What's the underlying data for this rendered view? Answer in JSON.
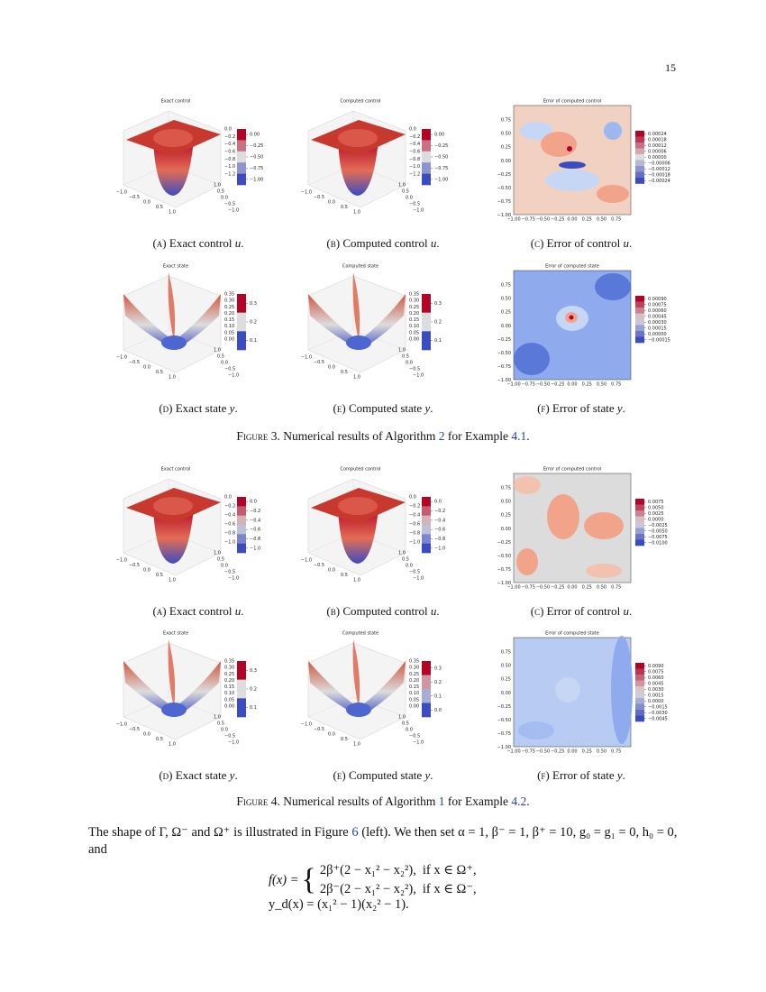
{
  "page_number": "15",
  "axes": {
    "surface_x": [
      "−1.0",
      "−0.5",
      "0.0",
      "0.5",
      "1.0"
    ],
    "surface_y": [
      "1.0",
      "0.5",
      "0.0",
      "−0.5",
      "−1.0"
    ],
    "contour_x": [
      "−1.00",
      "−0.75",
      "−0.50",
      "−0.25",
      "0.00",
      "0.25",
      "0.50",
      "0.75"
    ],
    "contour_y": [
      "0.75",
      "0.50",
      "0.25",
      "0.00",
      "−0.25",
      "−0.50",
      "−0.75",
      "−1.00"
    ]
  },
  "figures": [
    {
      "rows": [
        [
          {
            "title": "Exact control",
            "zticks": [
              "0.0",
              "−0.2",
              "−0.4",
              "−0.6",
              "−0.8",
              "−1.0",
              "−1.2"
            ],
            "cbar": [
              "0.00",
              "−0.25",
              "−0.50",
              "−0.75",
              "−1.00"
            ],
            "caption": {
              "label": "(a)",
              "text": "Exact control",
              "var": "u",
              "end": "."
            }
          },
          {
            "title": "Computed control",
            "zticks": [
              "0.0",
              "−0.2",
              "−0.4",
              "−0.6",
              "−0.8",
              "−1.0",
              "−1.2"
            ],
            "cbar": [
              "0.00",
              "−0.25",
              "−0.50",
              "−0.75",
              "−1.00"
            ],
            "caption": {
              "label": "(b)",
              "text": "Computed control",
              "var": "u",
              "end": "."
            }
          },
          {
            "title": "Error of computed control",
            "cbar": [
              "0.00024",
              "0.00018",
              "0.00012",
              "0.00006",
              "0.00000",
              "−0.00006",
              "−0.00012",
              "−0.00018",
              "−0.00024"
            ],
            "caption": {
              "label": "(c)",
              "text": "Error of control",
              "var": "u",
              "end": "."
            }
          }
        ],
        [
          {
            "title": "Exact state",
            "zticks": [
              "0.35",
              "0.30",
              "0.25",
              "0.20",
              "0.15",
              "0.10",
              "0.05",
              "0.00"
            ],
            "cbar": [
              "0.3",
              "0.2",
              "0.1"
            ],
            "caption": {
              "label": "(d)",
              "text": "Exact state",
              "var": "y",
              "end": "."
            }
          },
          {
            "title": "Computed state",
            "zticks": [
              "0.35",
              "0.30",
              "0.25",
              "0.20",
              "0.15",
              "0.10",
              "0.05",
              "0.00"
            ],
            "cbar": [
              "0.3",
              "0.2",
              "0.1"
            ],
            "caption": {
              "label": "(e)",
              "text": "Computed state",
              "var": "y",
              "end": "."
            }
          },
          {
            "title": "Error of computed state",
            "cbar": [
              "0.00090",
              "0.00075",
              "0.00060",
              "0.00045",
              "0.00030",
              "0.00015",
              "0.00000",
              "−0.00015"
            ],
            "caption": {
              "label": "(f)",
              "text": "Error of state",
              "var": "y",
              "end": "."
            }
          }
        ]
      ],
      "caption": {
        "label": "Figure 3.",
        "parts": [
          "Numerical results of Algorithm",
          "2",
          "for Example",
          "4.1",
          "."
        ]
      }
    },
    {
      "rows": [
        [
          {
            "title": "Exact control",
            "zticks": [
              "0.0",
              "−0.2",
              "−0.4",
              "−0.6",
              "−0.8",
              "−1.0"
            ],
            "cbar": [
              "0.0",
              "−0.2",
              "−0.4",
              "−0.6",
              "−0.8",
              "−1.0"
            ],
            "caption": {
              "label": "(a)",
              "text": "Exact control",
              "var": "u",
              "end": "."
            }
          },
          {
            "title": "Computed control",
            "zticks": [
              "0.0",
              "−0.2",
              "−0.4",
              "−0.6",
              "−0.8",
              "−1.0"
            ],
            "cbar": [
              "0.0",
              "−0.2",
              "−0.4",
              "−0.6",
              "−0.8",
              "−1.0"
            ],
            "caption": {
              "label": "(b)",
              "text": "Computed control",
              "var": "u",
              "end": "."
            }
          },
          {
            "title": "Error of computed control",
            "cbar": [
              "0.0075",
              "0.0050",
              "0.0025",
              "0.0000",
              "−0.0025",
              "−0.0050",
              "−0.0075",
              "−0.0100"
            ],
            "caption": {
              "label": "(c)",
              "text": "Error of control",
              "var": "u",
              "end": "."
            }
          }
        ],
        [
          {
            "title": "Exact state",
            "zticks": [
              "0.35",
              "0.30",
              "0.25",
              "0.20",
              "0.15",
              "0.10",
              "0.05",
              "0.00"
            ],
            "cbar": [
              "0.3",
              "0.2",
              "0.1"
            ],
            "caption": {
              "label": "(d)",
              "text": "Exact state",
              "var": "y",
              "end": "."
            }
          },
          {
            "title": "Computed state",
            "zticks": [
              "0.35",
              "0.30",
              "0.25",
              "0.20",
              "0.15",
              "0.10",
              "0.05",
              "0.00"
            ],
            "cbar": [
              "0.3",
              "0.2",
              "0.1",
              "0.0"
            ],
            "caption": {
              "label": "(e)",
              "text": "Computed state",
              "var": "y",
              "end": "."
            }
          },
          {
            "title": "Error of computed state",
            "cbar": [
              "0.0090",
              "0.0075",
              "0.0060",
              "0.0045",
              "0.0030",
              "0.0015",
              "0.0000",
              "−0.0015",
              "−0.0030",
              "−0.0045"
            ],
            "caption": {
              "label": "(f)",
              "text": "Error of state",
              "var": "y",
              "end": "."
            }
          }
        ]
      ],
      "caption": {
        "label": "Figure 4.",
        "parts": [
          "Numerical results of Algorithm",
          "1",
          "for Example",
          "4.2",
          "."
        ]
      }
    }
  ],
  "body": {
    "paragraph": [
      "The shape of Γ, Ω⁻ and Ω⁺ is illustrated in Figure",
      "6",
      "(left). We then set α = 1, β⁻ = 1, β⁺ = 10, g₀ = g₁ = 0, h₀ = 0, and"
    ],
    "equation_f": {
      "lhs": "f(x) =",
      "cases": [
        [
          "2β⁺(2 − x₁² − x₂²),",
          "if x ∈ Ω⁺,"
        ],
        [
          "2β⁻(2 − x₁² − x₂²),",
          "if x ∈ Ω⁻,"
        ]
      ]
    },
    "equation_yd": "y_d(x) = (x₁² − 1)(x₂² − 1)."
  }
}
